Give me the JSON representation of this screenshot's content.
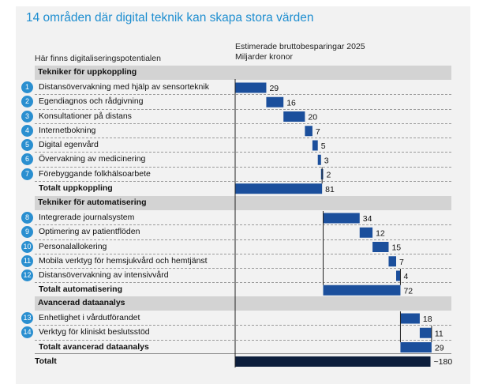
{
  "title": "14 områden där digital teknik kan skapa stora värden",
  "column_header": "Här finns digitaliseringspotentialen",
  "chart_header": {
    "line1": "Estimerade bruttobesparingar 2025",
    "line2": "Miljarder kronor"
  },
  "colors": {
    "bar": "#1b4f9c",
    "grand_total_bar": "#0c1e3c",
    "badge": "#2a8fd0",
    "section_band": "#d3d3d3",
    "title": "#1e8ed0"
  },
  "chart_data": {
    "type": "bar",
    "subtype": "waterfall",
    "title": "14 områden där digital teknik kan skapa stora värden",
    "xlabel": "Estimerade bruttobesparingar 2025 — Miljarder kronor",
    "xlim": [
      0,
      180
    ],
    "sections": [
      {
        "name": "Tekniker för uppkoppling",
        "items": [
          {
            "num": "1",
            "label": "Distansövervakning med hjälp av sensorteknik",
            "value": 29,
            "value_label": "29"
          },
          {
            "num": "2",
            "label": "Egendiagnos och rådgivning",
            "value": 16,
            "value_label": "16"
          },
          {
            "num": "3",
            "label": "Konsultationer på distans",
            "value": 20,
            "value_label": "20"
          },
          {
            "num": "4",
            "label": "Internetbokning",
            "value": 7,
            "value_label": "7"
          },
          {
            "num": "5",
            "label": "Digital egenvård",
            "value": 5,
            "value_label": "5"
          },
          {
            "num": "6",
            "label": "Övervakning av medicinering",
            "value": 3,
            "value_label": "3"
          },
          {
            "num": "7",
            "label": "Förebyggande folkhälsoarbete",
            "value": 2,
            "value_label": "2"
          }
        ],
        "total": {
          "label": "Totalt uppkoppling",
          "value": 81,
          "value_label": "81"
        }
      },
      {
        "name": "Tekniker för automatisering",
        "items": [
          {
            "num": "8",
            "label": "Integrerade journalsystem",
            "value": 34,
            "value_label": "34"
          },
          {
            "num": "9",
            "label": "Optimering av patientflöden",
            "value": 12,
            "value_label": "12"
          },
          {
            "num": "10",
            "label": "Personalallokering",
            "value": 15,
            "value_label": "15"
          },
          {
            "num": "11",
            "label": "Mobila verktyg för hemsjukvård och hemtjänst",
            "value": 7,
            "value_label": "7"
          },
          {
            "num": "12",
            "label": "Distansövervakning av intensivvård",
            "value": 4,
            "value_label": "4"
          }
        ],
        "total": {
          "label": "Totalt automatisering",
          "value": 72,
          "value_label": "72"
        }
      },
      {
        "name": "Avancerad dataanalys",
        "items": [
          {
            "num": "13",
            "label": "Enhetlighet i vårdutförandet",
            "value": 18,
            "value_label": "18"
          },
          {
            "num": "14",
            "label": "Verktyg för kliniskt beslutsstöd",
            "value": 11,
            "value_label": "11"
          }
        ],
        "total": {
          "label": "Totalt avancerad dataanalys",
          "value": 29,
          "value_label": "29"
        }
      }
    ],
    "grand_total": {
      "label": "Totalt",
      "value": 182,
      "value_label": "~180"
    }
  }
}
